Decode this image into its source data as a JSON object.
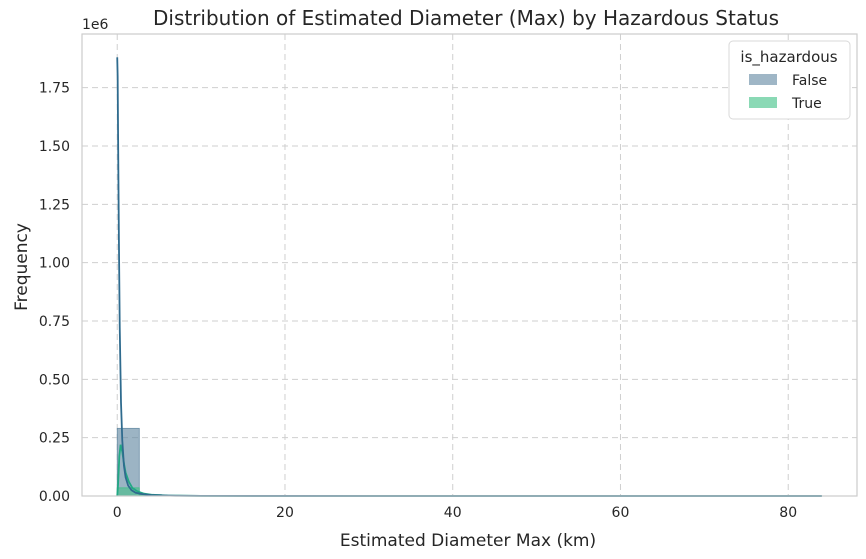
{
  "chart_data": {
    "type": "histogram",
    "title": "Distribution of Estimated Diameter (Max) by Hazardous Status",
    "xlabel": "Estimated Diameter Max (km)",
    "ylabel": "Frequency",
    "y_scale_label": "1e6",
    "xlim": [
      -4.2,
      88.2
    ],
    "ylim": [
      0,
      1.98
    ],
    "x_ticks": [
      0,
      20,
      40,
      60,
      80
    ],
    "x_tick_labels": [
      "0",
      "20",
      "40",
      "60",
      "80"
    ],
    "y_ticks": [
      0,
      0.25,
      0.5,
      0.75,
      1.0,
      1.25,
      1.5,
      1.75
    ],
    "y_tick_labels": [
      "0.00",
      "0.25",
      "0.50",
      "0.75",
      "1.00",
      "1.25",
      "1.50",
      "1.75"
    ],
    "grid": true,
    "legend": {
      "title": "is_hazardous",
      "placement": "top-right",
      "entries": [
        "False",
        "True"
      ]
    },
    "bin_edges": [
      0,
      2.63,
      5.25,
      7.88,
      84.0
    ],
    "series": [
      {
        "name": "False",
        "color": "#5f86a0",
        "line_color": "#2f6b8e",
        "bin_values": [
          0.29,
          0.006,
          0.002,
          0.0008
        ],
        "kde_x": [
          0,
          0.05,
          0.1,
          0.2,
          0.3,
          0.45,
          0.6,
          0.8,
          1.0,
          1.3,
          1.7,
          2.2,
          3.0,
          4.0,
          5.5,
          7.0,
          10,
          20,
          40,
          60,
          84
        ],
        "kde_y": [
          1.88,
          1.8,
          1.55,
          1.1,
          0.72,
          0.4,
          0.24,
          0.13,
          0.08,
          0.045,
          0.025,
          0.014,
          0.008,
          0.004,
          0.002,
          0.001,
          0.0005,
          0.0002,
          0.0001,
          0.0,
          0.0
        ]
      },
      {
        "name": "True",
        "color": "#3cbf84",
        "line_color": "#22a884",
        "bin_values": [
          0.035,
          0.003,
          0.001,
          0.0002
        ],
        "kde_x": [
          0,
          0.1,
          0.25,
          0.4,
          0.6,
          0.8,
          1.0,
          1.4,
          1.8,
          2.4,
          3.2,
          4.2,
          6.0,
          10,
          20,
          40,
          84
        ],
        "kde_y": [
          0.0,
          0.05,
          0.17,
          0.22,
          0.19,
          0.14,
          0.1,
          0.06,
          0.035,
          0.02,
          0.01,
          0.005,
          0.002,
          0.0005,
          0.0001,
          0.0,
          0.0
        ]
      }
    ]
  }
}
